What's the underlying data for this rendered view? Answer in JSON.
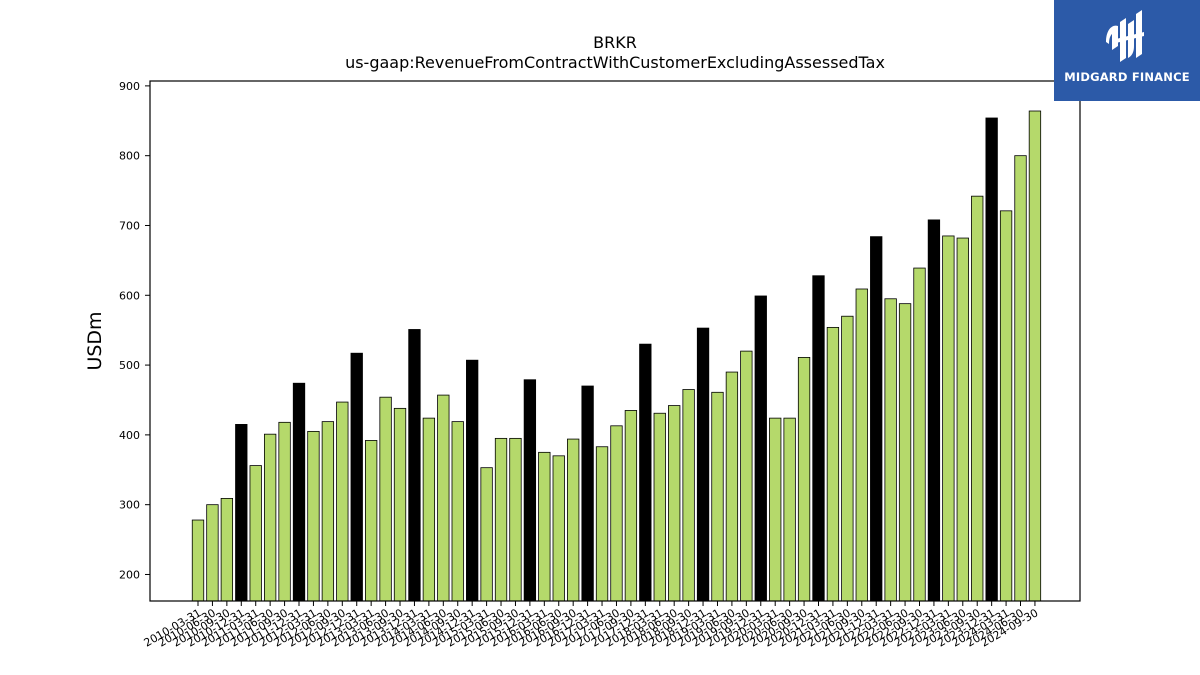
{
  "logo": {
    "name": "MIDGARD FINANCE",
    "bg_color": "#2c5aa8"
  },
  "chart_data": {
    "type": "bar",
    "title": "BRKR",
    "subtitle": "us-gaap:RevenueFromContractWithCustomerExcludingAssessedTax",
    "xlabel": "",
    "ylabel": "USDm",
    "ylim": [
      162,
      907
    ],
    "yticks": [
      200,
      300,
      400,
      500,
      600,
      700,
      800,
      900
    ],
    "grid": false,
    "legend": "none",
    "colors": {
      "quarter": "#b5d96b",
      "annual": "#000000",
      "edge": "#000000"
    },
    "categories": [
      "2010-03-31",
      "2010-06-30",
      "2010-09-30",
      "2010-12-31",
      "2011-03-31",
      "2011-06-30",
      "2011-09-30",
      "2011-12-31",
      "2012-03-31",
      "2012-06-30",
      "2012-09-30",
      "2012-12-31",
      "2013-03-31",
      "2013-06-30",
      "2013-09-30",
      "2013-12-31",
      "2014-03-31",
      "2014-06-30",
      "2014-09-30",
      "2014-12-31",
      "2015-03-31",
      "2015-06-30",
      "2015-09-30",
      "2015-12-31",
      "2016-03-31",
      "2016-06-30",
      "2016-09-30",
      "2016-12-31",
      "2017-03-31",
      "2017-06-30",
      "2017-09-30",
      "2017-12-31",
      "2018-03-31",
      "2018-06-30",
      "2018-09-30",
      "2018-12-31",
      "2019-03-31",
      "2019-06-30",
      "2019-09-30",
      "2019-12-31",
      "2020-03-31",
      "2020-06-30",
      "2020-09-30",
      "2020-12-31",
      "2021-03-31",
      "2021-06-30",
      "2021-09-30",
      "2021-12-31",
      "2022-03-31",
      "2022-06-30",
      "2022-09-30",
      "2022-12-31",
      "2023-03-31",
      "2023-06-30",
      "2023-09-30",
      "2023-12-31",
      "2024-03-31",
      "2024-06-30",
      "2024-09-30"
    ],
    "values": [
      278,
      300,
      309,
      415,
      356,
      401,
      418,
      474,
      405,
      419,
      447,
      517,
      392,
      454,
      438,
      551,
      424,
      457,
      419,
      507,
      353,
      395,
      395,
      479,
      375,
      370,
      394,
      470,
      383,
      413,
      435,
      530,
      431,
      442,
      465,
      553,
      461,
      490,
      520,
      599,
      424,
      424,
      511,
      628,
      554,
      570,
      609,
      684,
      595,
      588,
      639,
      708,
      685,
      682,
      742,
      854,
      721,
      800,
      864
    ],
    "annual_flags": [
      false,
      false,
      false,
      true,
      false,
      false,
      false,
      true,
      false,
      false,
      false,
      true,
      false,
      false,
      false,
      true,
      false,
      false,
      false,
      true,
      false,
      false,
      false,
      true,
      false,
      false,
      false,
      true,
      false,
      false,
      false,
      true,
      false,
      false,
      false,
      true,
      false,
      false,
      false,
      true,
      false,
      false,
      false,
      true,
      false,
      false,
      false,
      true,
      false,
      false,
      false,
      true,
      false,
      false,
      false,
      true,
      false,
      false,
      false
    ]
  }
}
